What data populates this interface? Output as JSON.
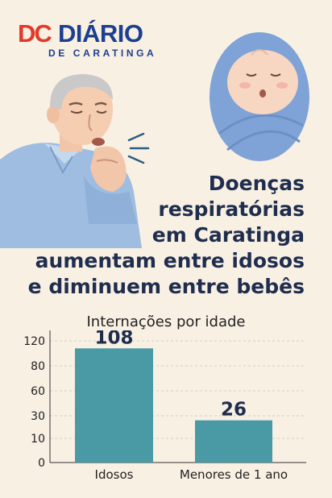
{
  "logo": {
    "mark": "DC",
    "name": "DIÁRIO",
    "sub": "DE CARATINGA"
  },
  "headline": {
    "lines": [
      "Doenças",
      "respiratórias",
      "em Caratinga",
      "aumentam entre idosos",
      "e diminuem entre bebês"
    ]
  },
  "colors": {
    "bar": "#4a9aa5",
    "title": "#1f2d4e",
    "logo_red": "#e23a2a",
    "logo_blue": "#1d3f8f"
  },
  "illustrations": {
    "elder": "elderly-man-coughing",
    "baby": "swaddled-baby-sleeping"
  },
  "chart_data": {
    "type": "bar",
    "title": "Internações por idade",
    "categories": [
      "Idosos",
      "Menores de 1 ano"
    ],
    "values": [
      108,
      26
    ],
    "value_labels": [
      "108",
      "26"
    ],
    "y_ticks": [
      "0",
      "10",
      "30",
      "60",
      "80",
      "120"
    ],
    "grid": true
  }
}
